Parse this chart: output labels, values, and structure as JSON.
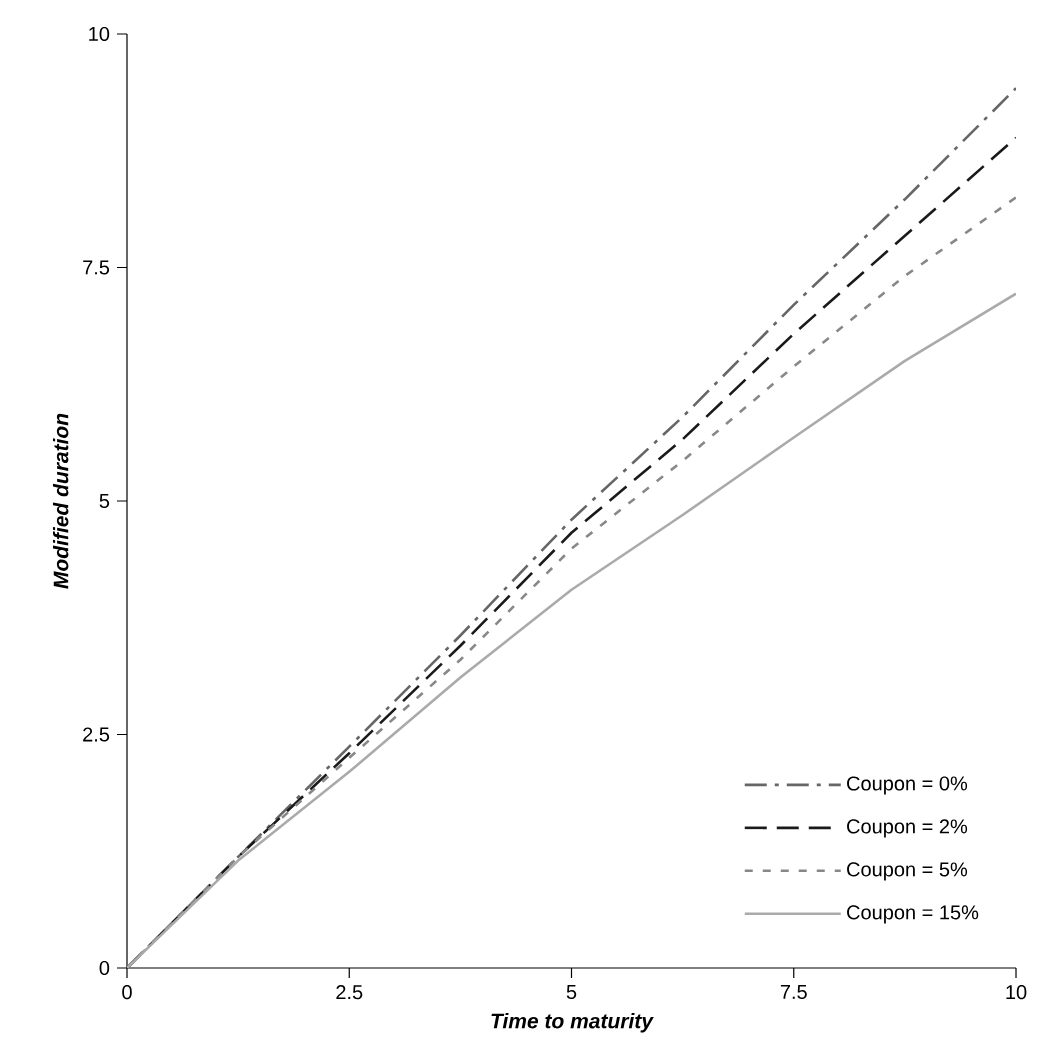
{
  "chart_data": {
    "type": "line",
    "xlabel": "Time to maturity",
    "ylabel": "Modified duration",
    "x": [
      0,
      1.25,
      2.5,
      3.75,
      5,
      6.25,
      7.5,
      8.75,
      10
    ],
    "series": [
      {
        "name": "Coupon = 0%",
        "color": "#666666",
        "line_style": "dashdot",
        "values": [
          0,
          1.19,
          2.37,
          3.56,
          4.8,
          5.9,
          7.1,
          8.23,
          9.42
        ]
      },
      {
        "name": "Coupon = 2%",
        "color": "#1a1a1a",
        "line_style": "dashed",
        "values": [
          0,
          1.19,
          2.3,
          3.45,
          4.66,
          5.66,
          6.79,
          7.84,
          8.89
        ]
      },
      {
        "name": "Coupon = 5%",
        "color": "#888888",
        "line_style": "dotted",
        "values": [
          0,
          1.19,
          2.25,
          3.3,
          4.49,
          5.43,
          6.44,
          7.41,
          8.25
        ]
      },
      {
        "name": "Coupon = 15%",
        "color": "#aaaaaa",
        "line_style": "solid",
        "values": [
          0,
          1.15,
          2.1,
          3.11,
          4.05,
          4.85,
          5.68,
          6.5,
          7.22
        ]
      }
    ],
    "xlim": [
      0,
      10
    ],
    "ylim": [
      0,
      10
    ],
    "xticks": [
      0,
      2.5,
      5,
      7.5,
      10
    ],
    "yticks": [
      0,
      2.5,
      5,
      7.5,
      10
    ],
    "grid": false,
    "legend": "bottom right",
    "marker": "none"
  }
}
